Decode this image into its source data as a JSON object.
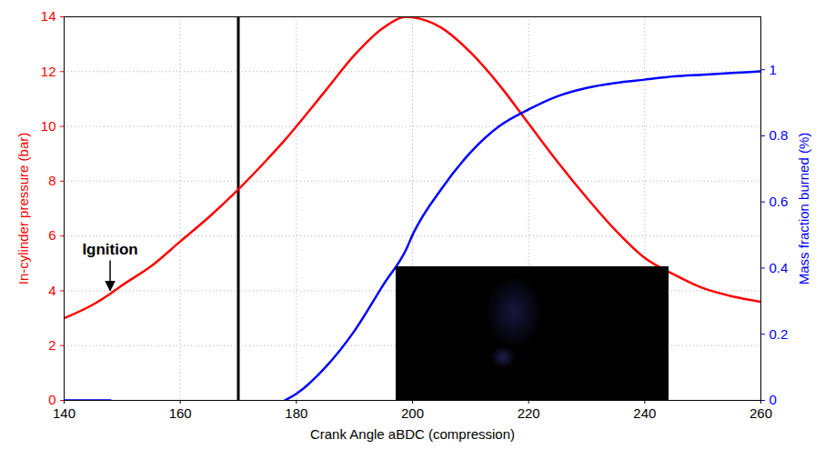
{
  "chart_data": {
    "type": "line",
    "x_label": "Crank Angle aBDC (compression)",
    "y_label": "In-cylinder pressure (bar)",
    "y2_label": "Mass fraction burned (%)",
    "x": [
      140,
      145,
      148,
      150,
      155,
      160,
      165,
      170,
      175,
      178,
      180,
      185,
      190,
      195,
      199,
      200,
      205,
      210,
      215,
      220,
      225,
      230,
      235,
      240,
      245,
      250,
      255,
      260
    ],
    "series": [
      {
        "name": "In-cylinder pressure",
        "color": "#ff0000",
        "axis": "y",
        "values": [
          3.0,
          3.5,
          3.9,
          4.2,
          4.9,
          5.8,
          6.7,
          7.7,
          8.8,
          9.5,
          10.0,
          11.3,
          12.6,
          13.6,
          14.0,
          13.98,
          13.6,
          12.7,
          11.5,
          10.1,
          8.7,
          7.4,
          6.2,
          5.2,
          4.6,
          4.1,
          3.8,
          3.6
        ]
      },
      {
        "name": "Mass fraction burned",
        "color": "#0000ff",
        "axis": "y2",
        "values": [
          0,
          0,
          0,
          null,
          null,
          null,
          null,
          null,
          null,
          0,
          0.02,
          0.1,
          0.21,
          0.35,
          0.46,
          0.5,
          0.64,
          0.75,
          0.83,
          0.88,
          0.92,
          0.945,
          0.96,
          0.97,
          0.98,
          0.985,
          0.99,
          0.995
        ]
      }
    ],
    "xlim": [
      140,
      260
    ],
    "xticks": [
      140,
      160,
      180,
      200,
      220,
      240,
      260
    ],
    "ylim": [
      0,
      14
    ],
    "yticks": [
      0,
      2,
      4,
      6,
      8,
      10,
      12,
      14
    ],
    "y2lim": [
      0,
      1.16
    ],
    "y2ticks": [
      0,
      0.2,
      0.4,
      0.6,
      0.8,
      1
    ],
    "grid": true,
    "vertical_lines": [
      170
    ],
    "annotations": [
      {
        "text": "Ignition",
        "x": 148,
        "y": 3.9
      }
    ]
  }
}
